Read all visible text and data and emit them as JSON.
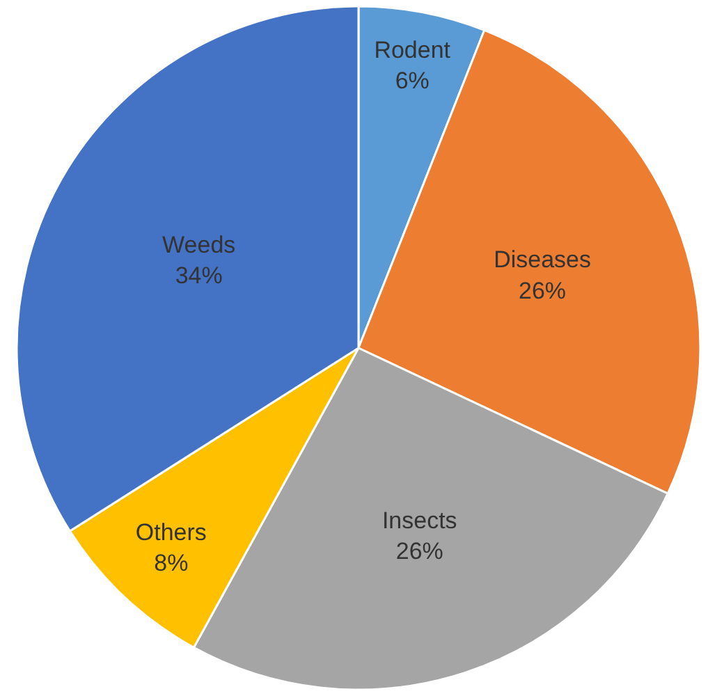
{
  "chart_data": {
    "type": "pie",
    "categories": [
      "Rodent",
      "Diseases",
      "Insects",
      "Others",
      "Weeds"
    ],
    "values": [
      6,
      26,
      26,
      8,
      34
    ],
    "value_labels": [
      "6%",
      "26%",
      "26%",
      "8%",
      "34%"
    ],
    "colors": [
      "#5b9bd5",
      "#ed7d31",
      "#a5a5a5",
      "#ffc000",
      "#4472c4"
    ],
    "legend": false
  }
}
